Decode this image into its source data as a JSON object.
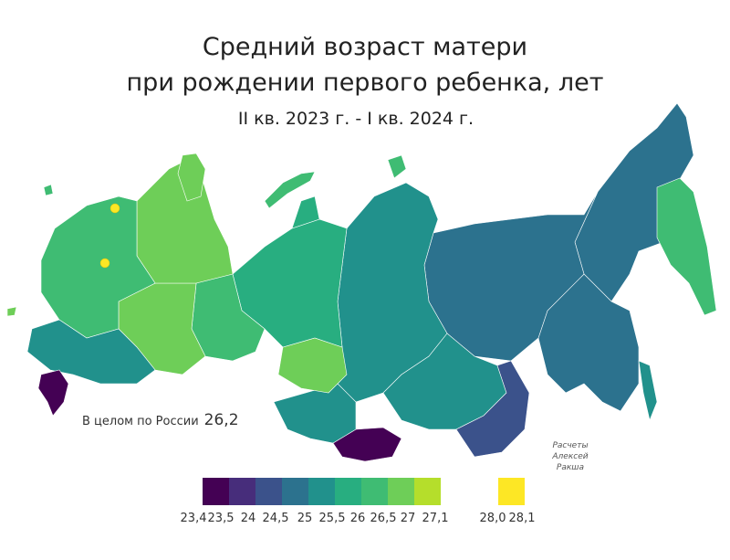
{
  "title_line1": "Средний возраст матери",
  "title_line2": "при рождении первого ребенка, лет",
  "subtitle": "II кв. 2023 г. - I кв. 2024 г.",
  "total_label": "В целом по России",
  "total_value": "26,2",
  "credit_line1": "Расчеты",
  "credit_line2": "Алексей Ракша",
  "legend": {
    "bins": [
      {
        "color": "#440154"
      },
      {
        "color": "#472d7b"
      },
      {
        "color": "#3b528b"
      },
      {
        "color": "#2c728e"
      },
      {
        "color": "#21918c"
      },
      {
        "color": "#28ae80"
      },
      {
        "color": "#3fbc73"
      },
      {
        "color": "#6ece58"
      },
      {
        "color": "#b5de2b"
      },
      {
        "color": "#fde725"
      }
    ],
    "labels": [
      "23,4",
      "23,5",
      "24",
      "24,5",
      "25",
      "25,5",
      "26",
      "26,5",
      "27",
      "27,1",
      "28,0",
      "28,1"
    ]
  },
  "map_colors": {
    "far_east": "#2c728e",
    "yakutia": "#2c728e",
    "krasnoyarsk": "#21918c",
    "west_siberia": "#28ae80",
    "ural": "#3fbc73",
    "volga": "#6ece58",
    "northwest": "#6ece58",
    "center": "#3fbc73",
    "south": "#21918c",
    "caucasus": "#440154",
    "tyva": "#440154",
    "buryatia": "#3b528b",
    "novosibirsk": "#6ece58",
    "kamchatka": "#3fbc73",
    "chukotka": "#2c728e",
    "islands": "#3fbc73",
    "cities": "#fde725"
  }
}
